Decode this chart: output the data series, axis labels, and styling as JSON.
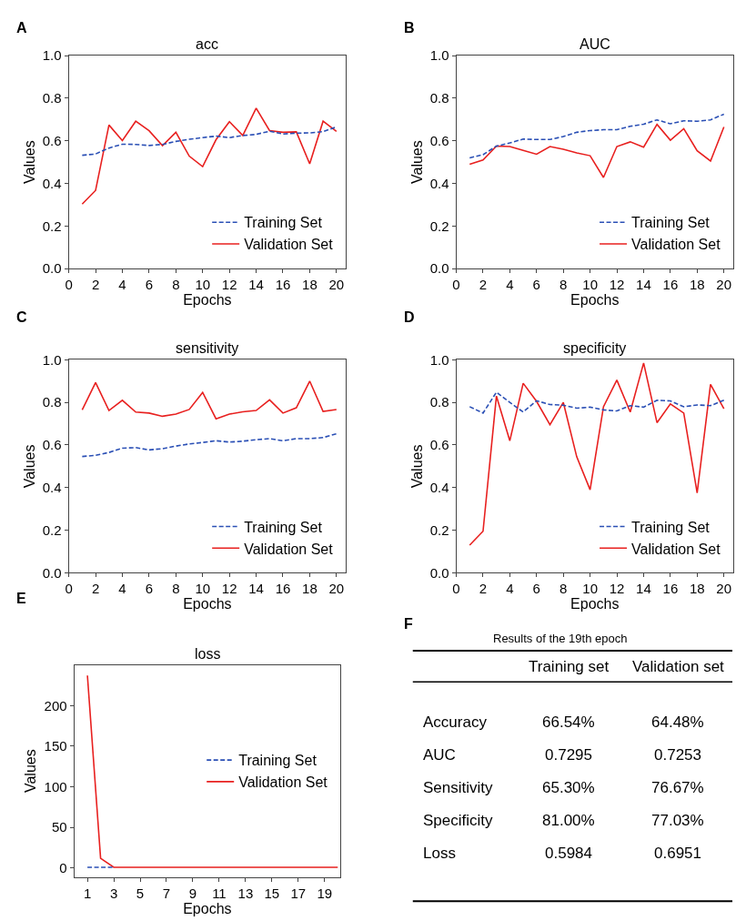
{
  "chart_data": [
    {
      "type": "line",
      "title": "acc",
      "xlabel": "Epochs",
      "ylabel": "Values",
      "annotations": [
        "A"
      ],
      "legend": "bottom right",
      "marker": "none",
      "x": [
        1,
        2,
        3,
        4,
        5,
        6,
        7,
        8,
        9,
        10,
        11,
        12,
        13,
        14,
        15,
        16,
        17,
        18,
        19,
        20
      ],
      "xlim": [
        0,
        20.7
      ],
      "xticks": [
        0,
        2,
        4,
        6,
        8,
        10,
        12,
        14,
        16,
        18,
        20
      ],
      "ylim": [
        0,
        1
      ],
      "yticks": [
        {
          "value": 0,
          "label": "0.0"
        },
        {
          "value": 0.2,
          "label": "0.2"
        },
        {
          "value": 0.4,
          "label": "0.4"
        },
        {
          "value": 0.6,
          "label": "0.6"
        },
        {
          "value": 0.8,
          "label": "0.8"
        },
        {
          "value": 1,
          "label": "1.0"
        }
      ],
      "series": [
        {
          "name": "Training Set",
          "color": "#2a4fb5",
          "line_style": "dashed",
          "values": [
            0.532,
            0.538,
            0.566,
            0.584,
            0.583,
            0.578,
            0.583,
            0.597,
            0.607,
            0.615,
            0.622,
            0.615,
            0.625,
            0.63,
            0.645,
            0.632,
            0.636,
            0.637,
            0.643,
            0.665
          ]
        },
        {
          "name": "Validation Set",
          "color": "#e8201f",
          "line_style": "solid",
          "values": [
            0.303,
            0.367,
            0.674,
            0.601,
            0.692,
            0.647,
            0.577,
            0.64,
            0.528,
            0.479,
            0.605,
            0.69,
            0.625,
            0.753,
            0.648,
            0.64,
            0.642,
            0.492,
            0.692,
            0.644
          ]
        }
      ]
    },
    {
      "type": "line",
      "title": "AUC",
      "xlabel": "Epochs",
      "ylabel": "Values",
      "annotations": [
        "B"
      ],
      "legend": "bottom right",
      "marker": "none",
      "x": [
        1,
        2,
        3,
        4,
        5,
        6,
        7,
        8,
        9,
        10,
        11,
        12,
        13,
        14,
        15,
        16,
        17,
        18,
        19,
        20
      ],
      "xlim": [
        0,
        20.7
      ],
      "xticks": [
        0,
        2,
        4,
        6,
        8,
        10,
        12,
        14,
        16,
        18,
        20
      ],
      "ylim": [
        0,
        1
      ],
      "yticks": [
        {
          "value": 0,
          "label": "0.0"
        },
        {
          "value": 0.2,
          "label": "0.2"
        },
        {
          "value": 0.4,
          "label": "0.4"
        },
        {
          "value": 0.6,
          "label": "0.6"
        },
        {
          "value": 0.8,
          "label": "0.8"
        },
        {
          "value": 1,
          "label": "1.0"
        }
      ],
      "series": [
        {
          "name": "Training Set",
          "color": "#2a4fb5",
          "line_style": "dashed",
          "values": [
            0.52,
            0.535,
            0.575,
            0.59,
            0.608,
            0.606,
            0.606,
            0.62,
            0.64,
            0.648,
            0.652,
            0.652,
            0.668,
            0.678,
            0.698,
            0.68,
            0.694,
            0.692,
            0.698,
            0.725
          ]
        },
        {
          "name": "Validation Set",
          "color": "#e8201f",
          "line_style": "solid",
          "values": [
            0.49,
            0.51,
            0.575,
            0.573,
            0.555,
            0.537,
            0.573,
            0.56,
            0.543,
            0.53,
            0.428,
            0.573,
            0.595,
            0.57,
            0.677,
            0.603,
            0.657,
            0.553,
            0.505,
            0.665
          ]
        }
      ]
    },
    {
      "type": "line",
      "title": "sensitivity",
      "xlabel": "Epochs",
      "ylabel": "Values",
      "annotations": [
        "C"
      ],
      "legend": "bottom right",
      "marker": "none",
      "x": [
        1,
        2,
        3,
        4,
        5,
        6,
        7,
        8,
        9,
        10,
        11,
        12,
        13,
        14,
        15,
        16,
        17,
        18,
        19,
        20
      ],
      "xlim": [
        0,
        20.7
      ],
      "xticks": [
        0,
        2,
        4,
        6,
        8,
        10,
        12,
        14,
        16,
        18,
        20
      ],
      "ylim": [
        0,
        1
      ],
      "yticks": [
        {
          "value": 0,
          "label": "0.0"
        },
        {
          "value": 0.2,
          "label": "0.2"
        },
        {
          "value": 0.4,
          "label": "0.4"
        },
        {
          "value": 0.6,
          "label": "0.6"
        },
        {
          "value": 0.8,
          "label": "0.8"
        },
        {
          "value": 1,
          "label": "1.0"
        }
      ],
      "series": [
        {
          "name": "Training Set",
          "color": "#2a4fb5",
          "line_style": "dashed",
          "values": [
            0.546,
            0.552,
            0.565,
            0.585,
            0.588,
            0.577,
            0.583,
            0.595,
            0.605,
            0.612,
            0.62,
            0.614,
            0.618,
            0.625,
            0.63,
            0.62,
            0.63,
            0.63,
            0.635,
            0.653
          ]
        },
        {
          "name": "Validation Set",
          "color": "#e8201f",
          "line_style": "solid",
          "values": [
            0.765,
            0.893,
            0.762,
            0.81,
            0.755,
            0.75,
            0.735,
            0.745,
            0.767,
            0.847,
            0.723,
            0.745,
            0.756,
            0.762,
            0.812,
            0.75,
            0.775,
            0.9,
            0.758,
            0.767
          ]
        }
      ]
    },
    {
      "type": "line",
      "title": "specificity",
      "xlabel": "Epochs",
      "ylabel": "Values",
      "annotations": [
        "D"
      ],
      "legend": "bottom right",
      "marker": "none",
      "x": [
        1,
        2,
        3,
        4,
        5,
        6,
        7,
        8,
        9,
        10,
        11,
        12,
        13,
        14,
        15,
        16,
        17,
        18,
        19,
        20
      ],
      "xlim": [
        0,
        20.7
      ],
      "xticks": [
        0,
        2,
        4,
        6,
        8,
        10,
        12,
        14,
        16,
        18,
        20
      ],
      "ylim": [
        0,
        1
      ],
      "yticks": [
        {
          "value": 0,
          "label": "0.0"
        },
        {
          "value": 0.2,
          "label": "0.2"
        },
        {
          "value": 0.4,
          "label": "0.4"
        },
        {
          "value": 0.6,
          "label": "0.6"
        },
        {
          "value": 0.8,
          "label": "0.8"
        },
        {
          "value": 1,
          "label": "1.0"
        }
      ],
      "series": [
        {
          "name": "Training Set",
          "color": "#2a4fb5",
          "line_style": "dashed",
          "values": [
            0.78,
            0.75,
            0.848,
            0.8,
            0.755,
            0.808,
            0.79,
            0.787,
            0.773,
            0.778,
            0.765,
            0.76,
            0.785,
            0.778,
            0.81,
            0.807,
            0.78,
            0.788,
            0.785,
            0.81
          ]
        },
        {
          "name": "Validation Set",
          "color": "#e8201f",
          "line_style": "solid",
          "values": [
            0.13,
            0.195,
            0.83,
            0.62,
            0.89,
            0.805,
            0.695,
            0.8,
            0.545,
            0.39,
            0.78,
            0.905,
            0.755,
            0.985,
            0.705,
            0.793,
            0.75,
            0.375,
            0.885,
            0.77
          ]
        }
      ]
    },
    {
      "type": "line",
      "title": "loss",
      "xlabel": "Epochs",
      "ylabel": "Values",
      "annotations": [
        "E"
      ],
      "legend": "right",
      "marker": "none",
      "x": [
        1,
        2,
        3,
        4,
        5,
        6,
        7,
        8,
        9,
        10,
        11,
        12,
        13,
        14,
        15,
        16,
        17,
        18,
        19,
        20
      ],
      "xlim": [
        0,
        20.2
      ],
      "xticks": [
        1,
        3,
        5,
        7,
        9,
        11,
        13,
        15,
        17,
        19
      ],
      "ylim": [
        -11,
        250
      ],
      "yticks": [
        0,
        50,
        100,
        150,
        200
      ],
      "series": [
        {
          "name": "Training Set",
          "color": "#2a4fb5",
          "line_style": "dashed",
          "values": [
            1,
            1,
            1,
            null,
            null,
            null,
            null,
            null,
            null,
            null,
            null,
            null,
            null,
            null,
            null,
            null,
            null,
            null,
            null,
            null
          ]
        },
        {
          "name": "Validation Set",
          "color": "#e8201f",
          "line_style": "solid",
          "values": [
            237,
            12,
            1,
            1,
            1,
            1,
            1,
            1,
            1,
            1,
            1,
            1,
            1,
            1,
            1,
            1,
            1,
            1,
            1,
            1
          ]
        }
      ]
    },
    {
      "type": "other",
      "title": "Results of the 19th epoch",
      "annotations": [
        "F"
      ],
      "categories": [
        "Training set",
        "Validation set"
      ],
      "y_categories": [
        "Accuracy",
        "AUC",
        "Sensitivity",
        "Specificity",
        "Loss"
      ],
      "cell_labels": [
        [
          "66.54%",
          "64.48%"
        ],
        [
          "0.7295",
          "0.7253"
        ],
        [
          "65.30%",
          "76.67%"
        ],
        [
          "81.00%",
          "77.03%"
        ],
        [
          "0.5984",
          "0.6951"
        ]
      ]
    }
  ]
}
